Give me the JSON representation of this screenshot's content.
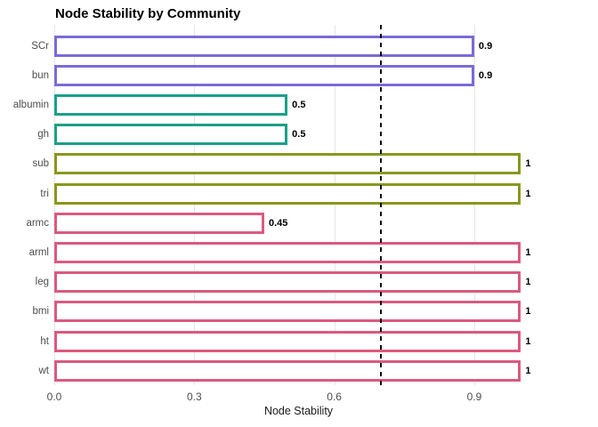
{
  "chart_data": {
    "type": "bar",
    "orientation": "horizontal",
    "title": "Node Stability by Community",
    "xlabel": "Node Stability",
    "categories": [
      "SCr",
      "bun",
      "albumin",
      "gh",
      "sub",
      "tri",
      "armc",
      "arml",
      "leg",
      "bmi",
      "ht",
      "wt"
    ],
    "values": [
      0.9,
      0.9,
      0.5,
      0.5,
      1,
      1,
      0.45,
      1,
      1,
      1,
      1,
      1
    ],
    "bar_labels": [
      "0.9",
      "0.9",
      "0.5",
      "0.5",
      "1",
      "1",
      "0.45",
      "1",
      "1",
      "1",
      "1",
      "1"
    ],
    "bar_colors": [
      "#7a6bd8",
      "#7a6bd8",
      "#1aa087",
      "#1aa087",
      "#8a971b",
      "#8a971b",
      "#db5a7e",
      "#db5a7e",
      "#db5a7e",
      "#db5a7e",
      "#db5a7e",
      "#db5a7e"
    ],
    "bar_fill": "#ffffff",
    "x_ticks": {
      "values": [
        0,
        0.3,
        0.6,
        0.9
      ],
      "labels": [
        "0.0",
        "0.3",
        "0.6",
        "0.9"
      ]
    },
    "xlim": [
      0,
      1.047
    ],
    "reference_line": {
      "value": 0.7,
      "style": "dashed",
      "color": "#000000"
    },
    "grid": {
      "vertical_major": true,
      "horizontal": false,
      "color": "#e5e5e5"
    },
    "legend": "none",
    "text_colors": {
      "title": "#000000",
      "axis_text": "#4d4d4d",
      "axis_title": "#1a1a1a",
      "bar_label": "#000000"
    }
  }
}
